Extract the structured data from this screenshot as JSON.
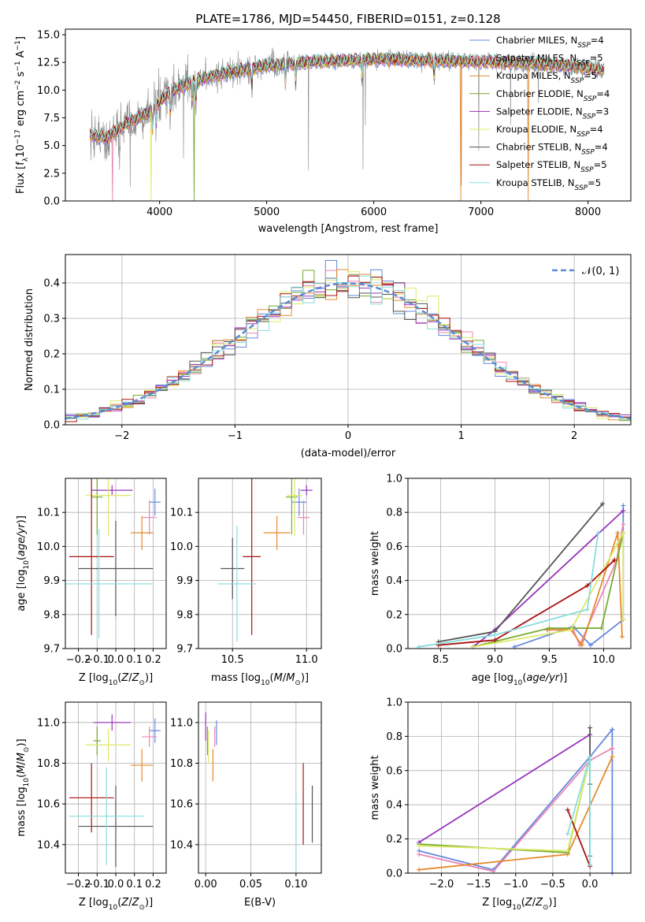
{
  "figure_title": "PLATE=1786, MJD=54450, FIBERID=0151, z=0.128",
  "colors": {
    "Chabrier MILES": "#6688dd",
    "Salpeter MILES": "#e987b4",
    "Kroupa MILES": "#e68a2e",
    "Chabrier ELODIE": "#77aa33",
    "Salpeter ELODIE": "#9933bb",
    "Kroupa ELODIE": "#dde866",
    "Chabrier STELIB": "#555555",
    "Salpeter STELIB": "#aa1111",
    "Kroupa STELIB": "#88dddd",
    "spectrum": "#888888",
    "normal_curve": "#5b8bd6"
  },
  "legend_spectrum": [
    {
      "name": "Chabrier MILES",
      "nssp": "4"
    },
    {
      "name": "Salpeter MILES",
      "nssp": "5"
    },
    {
      "name": "Kroupa MILES",
      "nssp": "5"
    },
    {
      "name": "Chabrier ELODIE",
      "nssp": "4"
    },
    {
      "name": "Salpeter ELODIE",
      "nssp": "3"
    },
    {
      "name": "Kroupa ELODIE",
      "nssp": "4"
    },
    {
      "name": "Chabrier STELIB",
      "nssp": "4"
    },
    {
      "name": "Salpeter STELIB",
      "nssp": "5"
    },
    {
      "name": "Kroupa STELIB",
      "nssp": "5"
    }
  ],
  "chart_data": [
    {
      "id": "spectrum",
      "type": "line",
      "title": "PLATE=1786, MJD=54450, FIBERID=0151, z=0.128",
      "xlabel": "wavelength [Angstrom, rest frame]",
      "ylabel": "Flux [f_λ 10^-17 erg cm^-2 s^-1 A^-1]",
      "xlim": [
        3120,
        8400
      ],
      "ylim": [
        0,
        15.5
      ],
      "xticks": [
        4000,
        5000,
        6000,
        7000,
        8000
      ],
      "yticks": [
        0.0,
        2.5,
        5.0,
        7.5,
        10.0,
        12.5,
        15.0
      ],
      "continuum_x": [
        3350,
        3500,
        3700,
        3900,
        4100,
        4300,
        4600,
        5000,
        5500,
        6000,
        6500,
        7000,
        7500,
        8000,
        8150
      ],
      "continuum_y": [
        6.0,
        5.7,
        7.0,
        8.0,
        9.8,
        10.8,
        11.5,
        12.2,
        12.6,
        12.8,
        12.7,
        12.6,
        12.4,
        12.0,
        11.8
      ],
      "absorption_lines": [
        3933,
        3968,
        4102,
        4304,
        4340,
        4861,
        5175,
        5270,
        5890,
        6563
      ],
      "notes": "All nine model fits overlay the observed spectrum; a few model curves drop to zero near 3560, 3920, 6810 and 7440 Angstrom."
    },
    {
      "id": "residuals",
      "type": "line",
      "xlabel": "(data-model)/error",
      "ylabel": "Normed distribution",
      "xlim": [
        -2.5,
        2.5
      ],
      "ylim": [
        0,
        0.48
      ],
      "xticks": [
        -2,
        -1,
        0,
        1,
        2
      ],
      "yticks": [
        0.0,
        0.1,
        0.2,
        0.3,
        0.4
      ],
      "grid": true,
      "legend": "top-right",
      "normal_label": "𝒩(0, 1)",
      "bin_width": 0.1,
      "notes": "Step histograms of the residuals of all nine fits, following a standard normal curve."
    },
    {
      "id": "age_vs_Z",
      "type": "scatter",
      "xlabel": "Z [log10(Z/Z⊙)]",
      "ylabel": "age [log10(age/yr)]",
      "xlim": [
        -0.27,
        0.27
      ],
      "ylim": [
        9.7,
        10.2
      ],
      "xticks": [
        -0.2,
        -0.1,
        0.0,
        0.1,
        0.2
      ],
      "yticks": [
        9.7,
        9.8,
        9.9,
        10.0,
        10.1
      ],
      "grid": true,
      "points": [
        {
          "series": "Chabrier MILES",
          "x": 0.21,
          "y": 10.13,
          "xerr": 0.03,
          "yerr": 0.04
        },
        {
          "series": "Salpeter MILES",
          "x": 0.18,
          "y": 10.085,
          "xerr": 0.04,
          "yerr": 0.05
        },
        {
          "series": "Kroupa MILES",
          "x": 0.14,
          "y": 10.04,
          "xerr": 0.06,
          "yerr": 0.05
        },
        {
          "series": "Chabrier ELODIE",
          "x": -0.1,
          "y": 10.145,
          "xerr": 0.03,
          "yerr": 0.11
        },
        {
          "series": "Salpeter ELODIE",
          "x": -0.02,
          "y": 10.165,
          "xerr": 0.11,
          "yerr": 0.015
        },
        {
          "series": "Kroupa ELODIE",
          "x": -0.04,
          "y": 10.15,
          "xerr": 0.12,
          "yerr": 0.12
        },
        {
          "series": "Chabrier STELIB",
          "x": 0.0,
          "y": 9.935,
          "xerr": 0.2,
          "yerr": 0.14
        },
        {
          "series": "Salpeter STELIB",
          "x": -0.13,
          "y": 9.97,
          "xerr": 0.12,
          "yerr": 0.23
        },
        {
          "series": "Kroupa STELIB",
          "x": -0.09,
          "y": 9.89,
          "xerr": 0.29,
          "yerr": 0.16
        }
      ]
    },
    {
      "id": "age_vs_mass",
      "type": "scatter",
      "xlabel": "mass [log10(M/M⊙)]",
      "ylabel": "",
      "xlim": [
        10.27,
        11.1
      ],
      "ylim": [
        9.7,
        10.2
      ],
      "xticks": [
        10.5,
        11.0
      ],
      "yticks": [
        9.7,
        9.8,
        9.9,
        10.0,
        10.1
      ],
      "grid": true,
      "points": [
        {
          "series": "Chabrier MILES",
          "x": 10.95,
          "y": 10.13,
          "xerr": 0.05,
          "yerr": 0.04
        },
        {
          "series": "Salpeter MILES",
          "x": 10.98,
          "y": 10.085,
          "xerr": 0.04,
          "yerr": 0.05
        },
        {
          "series": "Kroupa MILES",
          "x": 10.8,
          "y": 10.04,
          "xerr": 0.09,
          "yerr": 0.05
        },
        {
          "series": "Chabrier ELODIE",
          "x": 10.9,
          "y": 10.145,
          "xerr": 0.04,
          "yerr": 0.11
        },
        {
          "series": "Salpeter ELODIE",
          "x": 11.0,
          "y": 10.165,
          "xerr": 0.04,
          "yerr": 0.015
        },
        {
          "series": "Kroupa ELODIE",
          "x": 10.92,
          "y": 10.15,
          "xerr": 0.05,
          "yerr": 0.12
        },
        {
          "series": "Chabrier STELIB",
          "x": 10.5,
          "y": 9.935,
          "xerr": 0.08,
          "yerr": 0.09
        },
        {
          "series": "Salpeter STELIB",
          "x": 10.63,
          "y": 9.97,
          "xerr": 0.06,
          "yerr": 0.23
        },
        {
          "series": "Kroupa STELIB",
          "x": 10.53,
          "y": 9.89,
          "xerr": 0.13,
          "yerr": 0.17
        }
      ]
    },
    {
      "id": "weight_vs_age",
      "type": "line",
      "xlabel": "age [log10(age/yr)]",
      "ylabel": "mass weight",
      "xlim": [
        8.2,
        10.25
      ],
      "ylim": [
        0,
        1.0
      ],
      "xticks": [
        8.5,
        9.0,
        9.5,
        10.0
      ],
      "yticks": [
        0.0,
        0.2,
        0.4,
        0.6,
        0.8,
        1.0
      ],
      "grid": true,
      "series": [
        {
          "name": "Chabrier MILES",
          "x": [
            9.18,
            9.72,
            9.88,
            10.18,
            10.18
          ],
          "y": [
            0.01,
            0.13,
            0.02,
            0.17,
            0.84
          ]
        },
        {
          "name": "Salpeter MILES",
          "x": [
            9.48,
            9.72,
            9.78,
            10.12,
            10.18
          ],
          "y": [
            0.11,
            0.11,
            0.02,
            0.52,
            0.73
          ]
        },
        {
          "name": "Kroupa MILES",
          "x": [
            9.48,
            9.7,
            9.8,
            10.13,
            10.17
          ],
          "y": [
            0.11,
            0.11,
            0.02,
            0.68,
            0.07
          ]
        },
        {
          "name": "Chabrier ELODIE",
          "x": [
            8.8,
            9.5,
            9.98,
            10.18
          ],
          "y": [
            0.01,
            0.12,
            0.12,
            0.68
          ]
        },
        {
          "name": "Salpeter ELODIE",
          "x": [
            8.8,
            9.0,
            10.18
          ],
          "y": [
            0.01,
            0.11,
            0.81
          ]
        },
        {
          "name": "Kroupa ELODIE",
          "x": [
            8.8,
            9.7,
            10.18,
            10.18
          ],
          "y": [
            0.01,
            0.11,
            0.68,
            0.17
          ]
        },
        {
          "name": "Chabrier STELIB",
          "x": [
            8.48,
            9.0,
            9.99
          ],
          "y": [
            0.04,
            0.1,
            0.85
          ]
        },
        {
          "name": "Salpeter STELIB",
          "x": [
            8.48,
            9.0,
            9.85,
            10.1,
            10.1
          ],
          "y": [
            0.02,
            0.05,
            0.37,
            0.52,
            0.52
          ]
        },
        {
          "name": "Kroupa STELIB",
          "x": [
            8.3,
            9.0,
            9.85,
            9.95
          ],
          "y": [
            0.01,
            0.08,
            0.23,
            0.68
          ]
        }
      ]
    },
    {
      "id": "mass_vs_Z",
      "type": "scatter",
      "xlabel": "Z [log10(Z/Z⊙)]",
      "ylabel": "mass [log10(M/M⊙)]",
      "xlim": [
        -0.27,
        0.27
      ],
      "ylim": [
        10.26,
        11.1
      ],
      "xticks": [
        -0.2,
        -0.1,
        0.0,
        0.1,
        0.2
      ],
      "yticks": [
        10.4,
        10.6,
        10.8,
        11.0
      ],
      "grid": true,
      "points": [
        {
          "series": "Chabrier MILES",
          "x": 0.21,
          "y": 10.96,
          "xerr": 0.03,
          "yerr": 0.06
        },
        {
          "series": "Salpeter MILES",
          "x": 0.18,
          "y": 10.93,
          "xerr": 0.04,
          "yerr": 0.05
        },
        {
          "series": "Kroupa MILES",
          "x": 0.14,
          "y": 10.79,
          "xerr": 0.06,
          "yerr": 0.08
        },
        {
          "series": "Chabrier ELODIE",
          "x": -0.1,
          "y": 10.91,
          "xerr": 0.02,
          "yerr": 0.07
        },
        {
          "series": "Salpeter ELODIE",
          "x": -0.02,
          "y": 11.0,
          "xerr": 0.1,
          "yerr": 0.04
        },
        {
          "series": "Kroupa ELODIE",
          "x": -0.04,
          "y": 10.89,
          "xerr": 0.12,
          "yerr": 0.08
        },
        {
          "series": "Chabrier STELIB",
          "x": 0.0,
          "y": 10.49,
          "xerr": 0.2,
          "yerr": 0.2
        },
        {
          "series": "Salpeter STELIB",
          "x": -0.13,
          "y": 10.63,
          "xerr": 0.12,
          "yerr": 0.17
        },
        {
          "series": "Kroupa STELIB",
          "x": -0.05,
          "y": 10.54,
          "xerr": 0.2,
          "yerr": 0.24
        }
      ]
    },
    {
      "id": "mass_vs_EBV",
      "type": "scatter",
      "xlabel": "E(B-V)",
      "ylabel": "",
      "xlim": [
        -0.008,
        0.128
      ],
      "ylim": [
        10.26,
        11.1
      ],
      "xticks": [
        0.0,
        0.05,
        0.1
      ],
      "yticks": [
        10.4,
        10.6,
        10.8,
        11.0
      ],
      "grid": true,
      "points": [
        {
          "series": "Chabrier MILES",
          "x": 0.012,
          "y": 10.95,
          "yerr": 0.06
        },
        {
          "series": "Salpeter MILES",
          "x": 0.01,
          "y": 10.93,
          "yerr": 0.05
        },
        {
          "series": "Kroupa MILES",
          "x": 0.008,
          "y": 10.79,
          "yerr": 0.08
        },
        {
          "series": "Chabrier ELODIE",
          "x": 0.002,
          "y": 10.91,
          "yerr": 0.07
        },
        {
          "series": "Salpeter ELODIE",
          "x": 0.0,
          "y": 10.98,
          "yerr": 0.07
        },
        {
          "series": "Kroupa ELODIE",
          "x": 0.003,
          "y": 10.88,
          "yerr": 0.08
        },
        {
          "series": "Chabrier STELIB",
          "x": 0.118,
          "y": 10.55,
          "yerr": 0.14
        },
        {
          "series": "Salpeter STELIB",
          "x": 0.108,
          "y": 10.6,
          "yerr": 0.2
        },
        {
          "series": "Kroupa STELIB",
          "x": 0.1,
          "y": 10.45,
          "yerr": 0.2
        }
      ]
    },
    {
      "id": "weight_vs_Z",
      "type": "line",
      "xlabel": "Z [log10(Z/Z⊙)]",
      "ylabel": "mass weight",
      "xlim": [
        -2.45,
        0.55
      ],
      "ylim": [
        0,
        1.0
      ],
      "xticks": [
        -2.0,
        -1.5,
        -1.0,
        -0.5,
        0.0
      ],
      "yticks": [
        0.0,
        0.2,
        0.4,
        0.6,
        0.8,
        1.0
      ],
      "grid": true,
      "series": [
        {
          "name": "Chabrier MILES",
          "x": [
            -2.3,
            -1.3,
            0.0,
            0.3,
            0.3
          ],
          "y": [
            0.13,
            0.02,
            0.68,
            0.84,
            0.0
          ]
        },
        {
          "name": "Salpeter MILES",
          "x": [
            -2.3,
            -1.3,
            0.0,
            0.3
          ],
          "y": [
            0.11,
            0.01,
            0.66,
            0.73
          ]
        },
        {
          "name": "Kroupa MILES",
          "x": [
            -2.3,
            -0.3,
            0.3,
            0.3
          ],
          "y": [
            0.02,
            0.11,
            0.68,
            0.68
          ]
        },
        {
          "name": "Chabrier ELODIE",
          "x": [
            -2.3,
            -0.3,
            0.0
          ],
          "y": [
            0.17,
            0.12,
            0.68
          ]
        },
        {
          "name": "Salpeter ELODIE",
          "x": [
            -2.3,
            0.0
          ],
          "y": [
            0.18,
            0.81
          ]
        },
        {
          "name": "Kroupa ELODIE",
          "x": [
            -2.3,
            -0.3,
            0.0
          ],
          "y": [
            0.16,
            0.13,
            0.68
          ]
        },
        {
          "name": "Chabrier STELIB",
          "x": [
            0.0,
            0.0,
            0.0
          ],
          "y": [
            0.85,
            0.52,
            0.1
          ]
        },
        {
          "name": "Salpeter STELIB",
          "x": [
            -0.3,
            0.0
          ],
          "y": [
            0.37,
            0.04
          ]
        },
        {
          "name": "Kroupa STELIB",
          "x": [
            -0.3,
            0.0,
            0.0
          ],
          "y": [
            0.23,
            0.68,
            0.05
          ]
        }
      ]
    }
  ]
}
